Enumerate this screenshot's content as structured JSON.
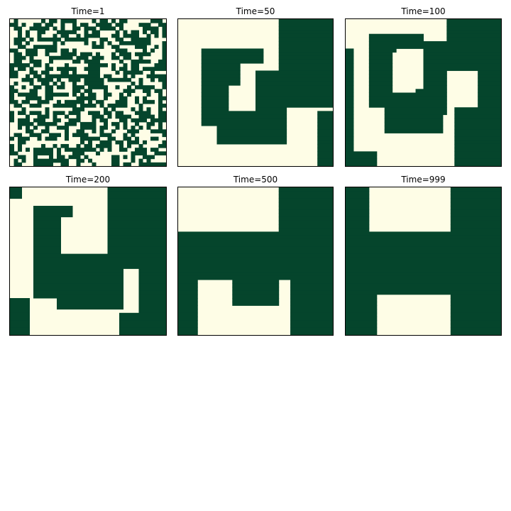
{
  "chart_data": {
    "type": "heatmap",
    "colors": {
      "state_a": "#05452c",
      "state_b": "#fefde6",
      "frame": "#000000"
    },
    "panels": [
      {
        "title": "Time=1",
        "pattern": "noise"
      },
      {
        "title": "Time=50",
        "pattern": "t50"
      },
      {
        "title": "Time=100",
        "pattern": "t100"
      },
      {
        "title": "Time=200",
        "pattern": "t200"
      },
      {
        "title": "Time=500",
        "pattern": "t500"
      },
      {
        "title": "Time=999",
        "pattern": "t999"
      }
    ]
  }
}
